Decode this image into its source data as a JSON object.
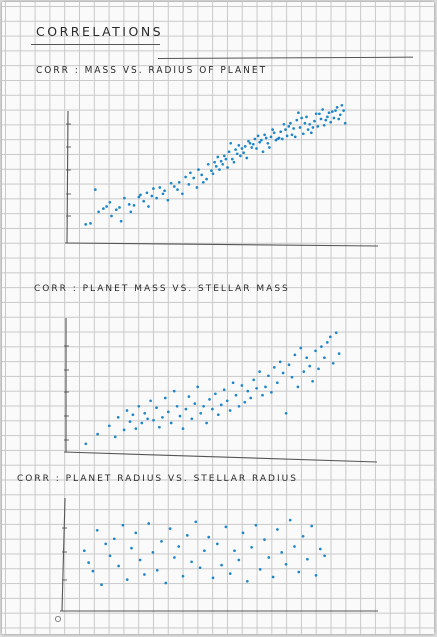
{
  "page": {
    "title": "CORRELATIONS"
  },
  "accent_color": "#1f86c8",
  "chart_data": [
    {
      "type": "scatter",
      "title": "CORR : MASS VS. RADIUS OF PLANET",
      "xlabel": "",
      "ylabel": "",
      "grid": true,
      "points": [
        [
          6,
          11
        ],
        [
          9,
          12
        ],
        [
          14,
          23
        ],
        [
          12,
          44
        ],
        [
          17,
          26
        ],
        [
          19,
          28
        ],
        [
          21,
          32
        ],
        [
          22,
          19
        ],
        [
          25,
          25
        ],
        [
          27,
          27
        ],
        [
          28,
          14
        ],
        [
          30,
          36
        ],
        [
          33,
          30
        ],
        [
          34,
          23
        ],
        [
          36,
          29
        ],
        [
          39,
          37
        ],
        [
          40,
          39
        ],
        [
          42,
          33
        ],
        [
          44,
          41
        ],
        [
          45,
          28
        ],
        [
          47,
          38
        ],
        [
          48,
          45
        ],
        [
          50,
          36
        ],
        [
          52,
          46
        ],
        [
          54,
          40
        ],
        [
          55,
          43
        ],
        [
          57,
          34
        ],
        [
          59,
          50
        ],
        [
          61,
          47
        ],
        [
          63,
          44
        ],
        [
          64,
          51
        ],
        [
          66,
          40
        ],
        [
          68,
          56
        ],
        [
          70,
          49
        ],
        [
          71,
          60
        ],
        [
          73,
          55
        ],
        [
          75,
          46
        ],
        [
          76,
          63
        ],
        [
          78,
          58
        ],
        [
          79,
          51
        ],
        [
          81,
          54
        ],
        [
          82,
          68
        ],
        [
          84,
          62
        ],
        [
          85,
          59
        ],
        [
          86,
          70
        ],
        [
          87,
          66
        ],
        [
          88,
          75
        ],
        [
          89,
          63
        ],
        [
          90,
          71
        ],
        [
          91,
          68
        ],
        [
          92,
          76
        ],
        [
          93,
          73
        ],
        [
          94,
          65
        ],
        [
          95,
          80
        ],
        [
          96,
          88
        ],
        [
          97,
          73
        ],
        [
          98,
          70
        ],
        [
          99,
          82
        ],
        [
          100,
          78
        ],
        [
          101,
          86
        ],
        [
          102,
          76
        ],
        [
          103,
          83
        ],
        [
          104,
          79
        ],
        [
          105,
          85
        ],
        [
          106,
          74
        ],
        [
          107,
          90
        ],
        [
          108,
          88
        ],
        [
          109,
          84
        ],
        [
          110,
          87
        ],
        [
          111,
          92
        ],
        [
          112,
          83
        ],
        [
          113,
          95
        ],
        [
          114,
          89
        ],
        [
          115,
          91
        ],
        [
          116,
          80
        ],
        [
          117,
          96
        ],
        [
          118,
          93
        ],
        [
          119,
          88
        ],
        [
          120,
          84
        ],
        [
          121,
          94
        ],
        [
          122,
          101
        ],
        [
          123,
          98
        ],
        [
          124,
          91
        ],
        [
          125,
          92
        ],
        [
          126,
          93
        ],
        [
          127,
          99
        ],
        [
          128,
          92
        ],
        [
          129,
          106
        ],
        [
          130,
          101
        ],
        [
          131,
          95
        ],
        [
          132,
          104
        ],
        [
          133,
          107
        ],
        [
          134,
          96
        ],
        [
          135,
          102
        ],
        [
          136,
          94
        ],
        [
          137,
          110
        ],
        [
          138,
          117
        ],
        [
          139,
          103
        ],
        [
          140,
          112
        ],
        [
          141,
          97
        ],
        [
          142,
          107
        ],
        [
          143,
          113
        ],
        [
          144,
          101
        ],
        [
          145,
          106
        ],
        [
          146,
          98
        ],
        [
          147,
          103
        ],
        [
          148,
          109
        ],
        [
          149,
          116
        ],
        [
          150,
          104
        ],
        [
          151,
          116
        ],
        [
          152,
          111
        ],
        [
          153,
          120
        ],
        [
          154,
          105
        ],
        [
          155,
          110
        ],
        [
          156,
          113
        ],
        [
          157,
          117
        ],
        [
          158,
          108
        ],
        [
          159,
          118
        ],
        [
          160,
          112
        ],
        [
          161,
          119
        ],
        [
          162,
          122
        ],
        [
          163,
          111
        ],
        [
          164,
          115
        ],
        [
          165,
          124
        ],
        [
          166,
          119
        ],
        [
          167,
          107
        ]
      ]
    },
    {
      "type": "scatter",
      "title": "CORR : PLANET MASS VS. STELLAR MASS",
      "xlabel": "",
      "ylabel": "",
      "grid": true,
      "points": [
        [
          4,
          3
        ],
        [
          8,
          10
        ],
        [
          12,
          16
        ],
        [
          14,
          8
        ],
        [
          15,
          22
        ],
        [
          17,
          13
        ],
        [
          18,
          27
        ],
        [
          19,
          19
        ],
        [
          20,
          24
        ],
        [
          21,
          14
        ],
        [
          22,
          30
        ],
        [
          23,
          18
        ],
        [
          24,
          25
        ],
        [
          25,
          21
        ],
        [
          26,
          34
        ],
        [
          27,
          20
        ],
        [
          28,
          29
        ],
        [
          29,
          15
        ],
        [
          30,
          22
        ],
        [
          31,
          36
        ],
        [
          32,
          26
        ],
        [
          33,
          18
        ],
        [
          34,
          41
        ],
        [
          35,
          30
        ],
        [
          36,
          23
        ],
        [
          37,
          14
        ],
        [
          38,
          28
        ],
        [
          39,
          37
        ],
        [
          40,
          21
        ],
        [
          41,
          32
        ],
        [
          42,
          44
        ],
        [
          43,
          25
        ],
        [
          44,
          30
        ],
        [
          45,
          18
        ],
        [
          46,
          35
        ],
        [
          47,
          28
        ],
        [
          48,
          39
        ],
        [
          49,
          24
        ],
        [
          50,
          31
        ],
        [
          51,
          42
        ],
        [
          52,
          34
        ],
        [
          53,
          27
        ],
        [
          54,
          47
        ],
        [
          55,
          38
        ],
        [
          56,
          30
        ],
        [
          57,
          45
        ],
        [
          58,
          33
        ],
        [
          59,
          41
        ],
        [
          60,
          36
        ],
        [
          61,
          49
        ],
        [
          62,
          43
        ],
        [
          63,
          55
        ],
        [
          64,
          38
        ],
        [
          65,
          44
        ],
        [
          66,
          52
        ],
        [
          67,
          40
        ],
        [
          68,
          58
        ],
        [
          69,
          47
        ],
        [
          70,
          62
        ],
        [
          71,
          54
        ],
        [
          72,
          25
        ],
        [
          73,
          60
        ],
        [
          74,
          51
        ],
        [
          75,
          67
        ],
        [
          76,
          44
        ],
        [
          77,
          72
        ],
        [
          78,
          55
        ],
        [
          79,
          65
        ],
        [
          80,
          59
        ],
        [
          81,
          48
        ],
        [
          82,
          70
        ],
        [
          83,
          57
        ],
        [
          84,
          73
        ],
        [
          85,
          65
        ],
        [
          86,
          76
        ],
        [
          87,
          80
        ],
        [
          88,
          61
        ],
        [
          89,
          83
        ],
        [
          90,
          68
        ]
      ]
    },
    {
      "type": "scatter",
      "title": "CORR : PLANET RADIUS VS. STELLAR RADIUS",
      "xlabel": "",
      "ylabel": "",
      "grid": true,
      "points": [
        [
          3,
          58
        ],
        [
          6,
          44
        ],
        [
          9,
          34
        ],
        [
          12,
          82
        ],
        [
          15,
          18
        ],
        [
          18,
          66
        ],
        [
          21,
          52
        ],
        [
          24,
          72
        ],
        [
          27,
          40
        ],
        [
          30,
          88
        ],
        [
          33,
          24
        ],
        [
          36,
          61
        ],
        [
          39,
          79
        ],
        [
          42,
          47
        ],
        [
          45,
          30
        ],
        [
          48,
          90
        ],
        [
          51,
          56
        ],
        [
          54,
          35
        ],
        [
          57,
          69
        ],
        [
          60,
          20
        ],
        [
          63,
          84
        ],
        [
          66,
          50
        ],
        [
          69,
          63
        ],
        [
          72,
          28
        ],
        [
          75,
          76
        ],
        [
          78,
          45
        ],
        [
          81,
          92
        ],
        [
          84,
          38
        ],
        [
          87,
          58
        ],
        [
          90,
          74
        ],
        [
          93,
          26
        ],
        [
          96,
          66
        ],
        [
          99,
          41
        ],
        [
          102,
          86
        ],
        [
          105,
          31
        ],
        [
          108,
          58
        ],
        [
          111,
          47
        ],
        [
          114,
          79
        ],
        [
          117,
          22
        ],
        [
          120,
          62
        ],
        [
          123,
          88
        ],
        [
          126,
          36
        ],
        [
          129,
          71
        ],
        [
          132,
          50
        ],
        [
          135,
          27
        ],
        [
          138,
          83
        ],
        [
          141,
          56
        ],
        [
          144,
          42
        ],
        [
          147,
          94
        ],
        [
          150,
          63
        ],
        [
          153,
          33
        ],
        [
          156,
          75
        ],
        [
          159,
          48
        ],
        [
          162,
          87
        ],
        [
          165,
          29
        ],
        [
          168,
          60
        ],
        [
          171,
          52
        ]
      ]
    }
  ]
}
